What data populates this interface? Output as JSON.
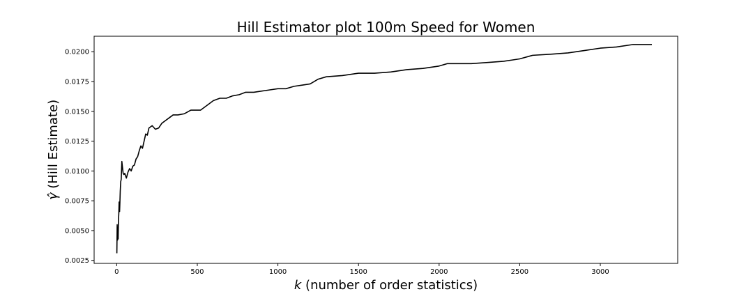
{
  "chart_data": {
    "type": "line",
    "title": "Hill Estimator plot 100m Speed for Women",
    "xlabel_var": "k",
    "xlabel_rest": " (number of order statistics)",
    "ylabel_var": "γ̂",
    "ylabel_rest": " (Hill Estimate)",
    "xlim": [
      -140,
      3480
    ],
    "ylim": [
      0.00225,
      0.0213
    ],
    "xticks": [
      0,
      500,
      1000,
      1500,
      2000,
      2500,
      3000
    ],
    "xtick_labels": [
      "0",
      "500",
      "1000",
      "1500",
      "2000",
      "2500",
      "3000"
    ],
    "yticks": [
      0.0025,
      0.005,
      0.0075,
      0.01,
      0.0125,
      0.015,
      0.0175,
      0.02
    ],
    "ytick_labels": [
      "0.0025",
      "0.0050",
      "0.0075",
      "0.0100",
      "0.0125",
      "0.0150",
      "0.0175",
      "0.0200"
    ],
    "grid": false,
    "line_color": "#000000",
    "series": [
      {
        "x": [
          1,
          3,
          5,
          7,
          9,
          11,
          13,
          15,
          18,
          20,
          22,
          25,
          28,
          32,
          36,
          40,
          45,
          50,
          55,
          60,
          70,
          80,
          90,
          100,
          110,
          120,
          130,
          140,
          150,
          160,
          170,
          180,
          190,
          200,
          220,
          240,
          260,
          280,
          300,
          320,
          350,
          380,
          420,
          460,
          500,
          520,
          560,
          600,
          640,
          680,
          720,
          760,
          800,
          850,
          900,
          950,
          1000,
          1050,
          1100,
          1150,
          1200,
          1250,
          1300,
          1400,
          1500,
          1600,
          1700,
          1800,
          1900,
          2000,
          2050,
          2100,
          2200,
          2300,
          2400,
          2450,
          2500,
          2580,
          2700,
          2800,
          2900,
          3000,
          3100,
          3200,
          3320
        ],
        "y": [
          0.0031,
          0.0055,
          0.0042,
          0.0051,
          0.0043,
          0.0058,
          0.0064,
          0.0074,
          0.0066,
          0.0074,
          0.0083,
          0.0091,
          0.0093,
          0.0108,
          0.0103,
          0.0098,
          0.0097,
          0.0098,
          0.0096,
          0.0094,
          0.0099,
          0.0102,
          0.01,
          0.0104,
          0.0105,
          0.011,
          0.0112,
          0.0117,
          0.0121,
          0.0119,
          0.0125,
          0.0131,
          0.013,
          0.0136,
          0.0138,
          0.0135,
          0.0136,
          0.014,
          0.0142,
          0.0144,
          0.0147,
          0.0147,
          0.0148,
          0.0151,
          0.0151,
          0.0151,
          0.0155,
          0.0159,
          0.0161,
          0.0161,
          0.0163,
          0.0164,
          0.0166,
          0.0166,
          0.0167,
          0.0168,
          0.0169,
          0.0169,
          0.0171,
          0.0172,
          0.0173,
          0.0177,
          0.0179,
          0.018,
          0.0182,
          0.0182,
          0.0183,
          0.0185,
          0.0186,
          0.0188,
          0.019,
          0.019,
          0.019,
          0.0191,
          0.0192,
          0.0193,
          0.0194,
          0.0197,
          0.0198,
          0.0199,
          0.0201,
          0.0203,
          0.0204,
          0.0206,
          0.0206
        ]
      }
    ]
  }
}
